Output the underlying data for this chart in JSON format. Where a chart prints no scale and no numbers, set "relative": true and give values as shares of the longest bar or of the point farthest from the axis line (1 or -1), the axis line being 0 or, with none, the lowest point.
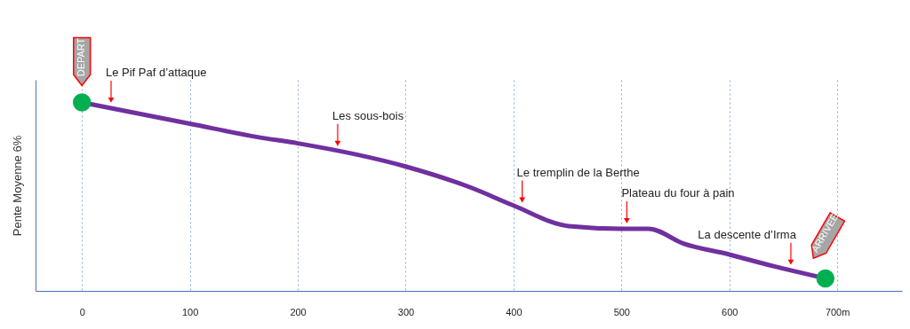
{
  "chart_data": {
    "type": "line",
    "relative": true,
    "ylabel": "Pente Moyenne 6%",
    "x": [
      0,
      100,
      163,
      200,
      300,
      361,
      400,
      451,
      500,
      525,
      558,
      600,
      640,
      689
    ],
    "xlim": [
      -43,
      760
    ],
    "xticks": [
      0,
      100,
      200,
      300,
      400,
      500,
      600,
      {
        "value": 700,
        "label": "700m"
      }
    ],
    "grid": "x",
    "series": [
      {
        "color": "#7030a0",
        "values": [
          1.0,
          0.887,
          0.816,
          0.783,
          0.66,
          0.547,
          0.453,
          0.344,
          0.33,
          0.33,
          0.25,
          0.193,
          0.132,
          0.066
        ]
      }
    ],
    "annotations": [
      {
        "text": "DEPART",
        "x": 0,
        "y": 1.0
      },
      {
        "text": "Le Pif Paf d’attaque",
        "x": 27,
        "y": 0.97
      },
      {
        "text": "Les sous-bois",
        "x": 237,
        "y": 0.74
      },
      {
        "text": "Le tremplin de la Berthe",
        "x": 408,
        "y": 0.44
      },
      {
        "text": "Plateau du four à pain",
        "x": 505,
        "y": 0.33
      },
      {
        "text": "La descente d’Irma",
        "x": 657,
        "y": 0.11
      },
      {
        "text": "ARRIVEE",
        "x": 689,
        "y": 0.066
      }
    ]
  }
}
